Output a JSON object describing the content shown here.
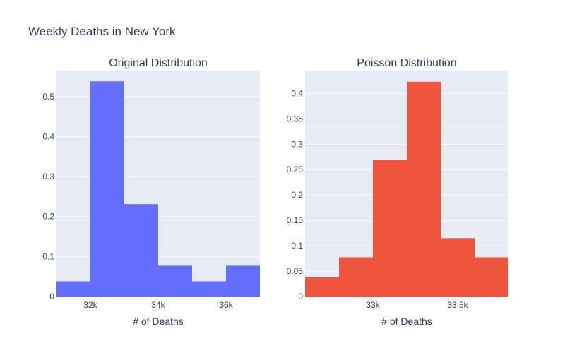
{
  "title": "Weekly Deaths in New York",
  "chart_data": [
    {
      "type": "bar",
      "title": "Original Distribution",
      "xlabel": "# of Deaths",
      "ylabel": "",
      "color": "#636efa",
      "xlim": [
        31000,
        37000
      ],
      "ylim": [
        0,
        0.565
      ],
      "bin_width": 1000,
      "bins": [
        {
          "x0": 31000,
          "x1": 32000,
          "value": 0.038
        },
        {
          "x0": 32000,
          "x1": 33000,
          "value": 0.538
        },
        {
          "x0": 33000,
          "x1": 34000,
          "value": 0.231
        },
        {
          "x0": 34000,
          "x1": 35000,
          "value": 0.077
        },
        {
          "x0": 35000,
          "x1": 36000,
          "value": 0.038
        },
        {
          "x0": 36000,
          "x1": 37000,
          "value": 0.077
        }
      ],
      "xticks": [
        {
          "value": 32000,
          "label": "32k"
        },
        {
          "value": 34000,
          "label": "34k"
        },
        {
          "value": 36000,
          "label": "36k"
        }
      ],
      "yticks": [
        {
          "value": 0,
          "label": "0"
        },
        {
          "value": 0.1,
          "label": "0.1"
        },
        {
          "value": 0.2,
          "label": "0.2"
        },
        {
          "value": 0.3,
          "label": "0.3"
        },
        {
          "value": 0.4,
          "label": "0.4"
        },
        {
          "value": 0.5,
          "label": "0.5"
        }
      ]
    },
    {
      "type": "bar",
      "title": "Poisson Distribution",
      "xlabel": "# of Deaths",
      "ylabel": "",
      "color": "#ef553b",
      "xlim": [
        32600,
        33800
      ],
      "ylim": [
        0,
        0.445
      ],
      "bin_width": 200,
      "bins": [
        {
          "x0": 32600,
          "x1": 32800,
          "value": 0.038
        },
        {
          "x0": 32800,
          "x1": 33000,
          "value": 0.077
        },
        {
          "x0": 33000,
          "x1": 33200,
          "value": 0.269
        },
        {
          "x0": 33200,
          "x1": 33400,
          "value": 0.423
        },
        {
          "x0": 33400,
          "x1": 33600,
          "value": 0.115
        },
        {
          "x0": 33600,
          "x1": 33800,
          "value": 0.077
        }
      ],
      "xticks": [
        {
          "value": 33000,
          "label": "33k"
        },
        {
          "value": 33500,
          "label": "33.5k"
        }
      ],
      "yticks": [
        {
          "value": 0,
          "label": "0"
        },
        {
          "value": 0.05,
          "label": "0.05"
        },
        {
          "value": 0.1,
          "label": "0.1"
        },
        {
          "value": 0.15,
          "label": "0.15"
        },
        {
          "value": 0.2,
          "label": "0.2"
        },
        {
          "value": 0.25,
          "label": "0.25"
        },
        {
          "value": 0.3,
          "label": "0.3"
        },
        {
          "value": 0.35,
          "label": "0.35"
        },
        {
          "value": 0.4,
          "label": "0.4"
        }
      ]
    }
  ]
}
